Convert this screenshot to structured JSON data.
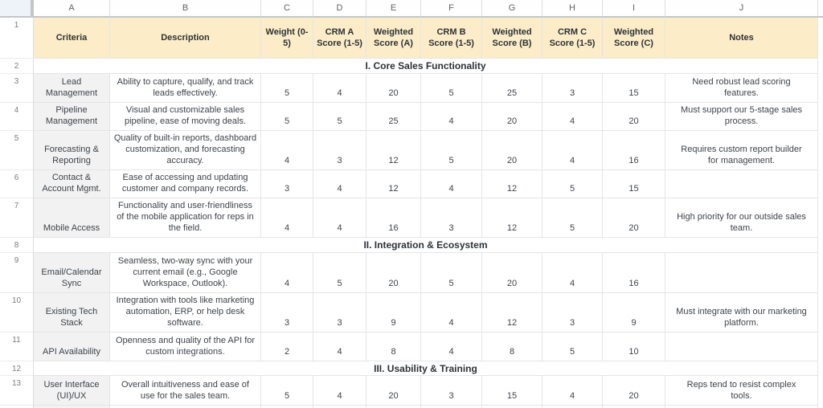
{
  "sheet": {
    "column_letters": [
      "A",
      "B",
      "C",
      "D",
      "E",
      "F",
      "G",
      "H",
      "I",
      "J"
    ],
    "rows": [
      {
        "num": "1",
        "type": "header",
        "cells": [
          "Criteria",
          "Description",
          "Weight (0-5)",
          "CRM A Score (1-5)",
          "Weighted Score (A)",
          "CRM B Score (1-5)",
          "Weighted Score (B)",
          "CRM C Score (1-5)",
          "Weighted Score (C)",
          "Notes"
        ]
      },
      {
        "num": "2",
        "type": "section",
        "title": "I. Core Sales Functionality"
      },
      {
        "num": "3",
        "type": "data",
        "cells": [
          "Lead Management",
          "Ability to capture, qualify, and track leads effectively.",
          "5",
          "4",
          "20",
          "5",
          "25",
          "3",
          "15",
          "Need robust lead scoring features."
        ]
      },
      {
        "num": "4",
        "type": "data",
        "cells": [
          "Pipeline Management",
          "Visual and customizable sales pipeline, ease of moving deals.",
          "5",
          "5",
          "25",
          "4",
          "20",
          "4",
          "20",
          "Must support our 5-stage sales process."
        ]
      },
      {
        "num": "5",
        "type": "data",
        "cells": [
          "Forecasting & Reporting",
          "Quality of built-in reports, dashboard customization, and forecasting accuracy.",
          "4",
          "3",
          "12",
          "5",
          "20",
          "4",
          "16",
          "Requires custom report builder for management."
        ]
      },
      {
        "num": "6",
        "type": "data",
        "cells": [
          "Contact & Account Mgmt.",
          "Ease of accessing and updating customer and company records.",
          "3",
          "4",
          "12",
          "4",
          "12",
          "5",
          "15",
          ""
        ]
      },
      {
        "num": "7",
        "type": "data",
        "cells": [
          "Mobile Access",
          "Functionality and user-friendliness of the mobile application for reps in the field.",
          "4",
          "4",
          "16",
          "3",
          "12",
          "5",
          "20",
          "High priority for our outside sales team."
        ]
      },
      {
        "num": "8",
        "type": "section",
        "title": "II. Integration & Ecosystem"
      },
      {
        "num": "9",
        "type": "data",
        "cells": [
          "Email/Calendar Sync",
          "Seamless, two-way sync with your current email (e.g., Google Workspace, Outlook).",
          "4",
          "5",
          "20",
          "5",
          "20",
          "4",
          "16",
          ""
        ]
      },
      {
        "num": "10",
        "type": "data",
        "cells": [
          "Existing Tech Stack",
          "Integration with tools like marketing automation, ERP, or help desk software.",
          "3",
          "3",
          "9",
          "4",
          "12",
          "3",
          "9",
          "Must integrate with our marketing platform."
        ]
      },
      {
        "num": "11",
        "type": "data",
        "cells": [
          "API Availability",
          "Openness and quality of the API for custom integrations.",
          "2",
          "4",
          "8",
          "4",
          "8",
          "5",
          "10",
          ""
        ]
      },
      {
        "num": "12",
        "type": "section",
        "title": "III. Usability & Training"
      },
      {
        "num": "13",
        "type": "data",
        "cells": [
          "User Interface (UI)/UX",
          "Overall intuitiveness and ease of use for the sales team.",
          "5",
          "4",
          "20",
          "3",
          "15",
          "4",
          "20",
          "Reps tend to resist complex tools."
        ]
      },
      {
        "num": "14",
        "type": "sliver"
      }
    ],
    "colors": {
      "header_bg": "#fcedc8",
      "criteria_bg": "#f2f2f2",
      "grid": "#e3e5e8",
      "grid_light": "#ebebeb",
      "freeze": "#c3c6c8",
      "strip_line": "#dadde0",
      "text": "#3e434a",
      "header_text": "#2d3237",
      "muted": "#797d80",
      "col_letter": "#5f6368",
      "corner_bg": "#eef3f9"
    }
  }
}
